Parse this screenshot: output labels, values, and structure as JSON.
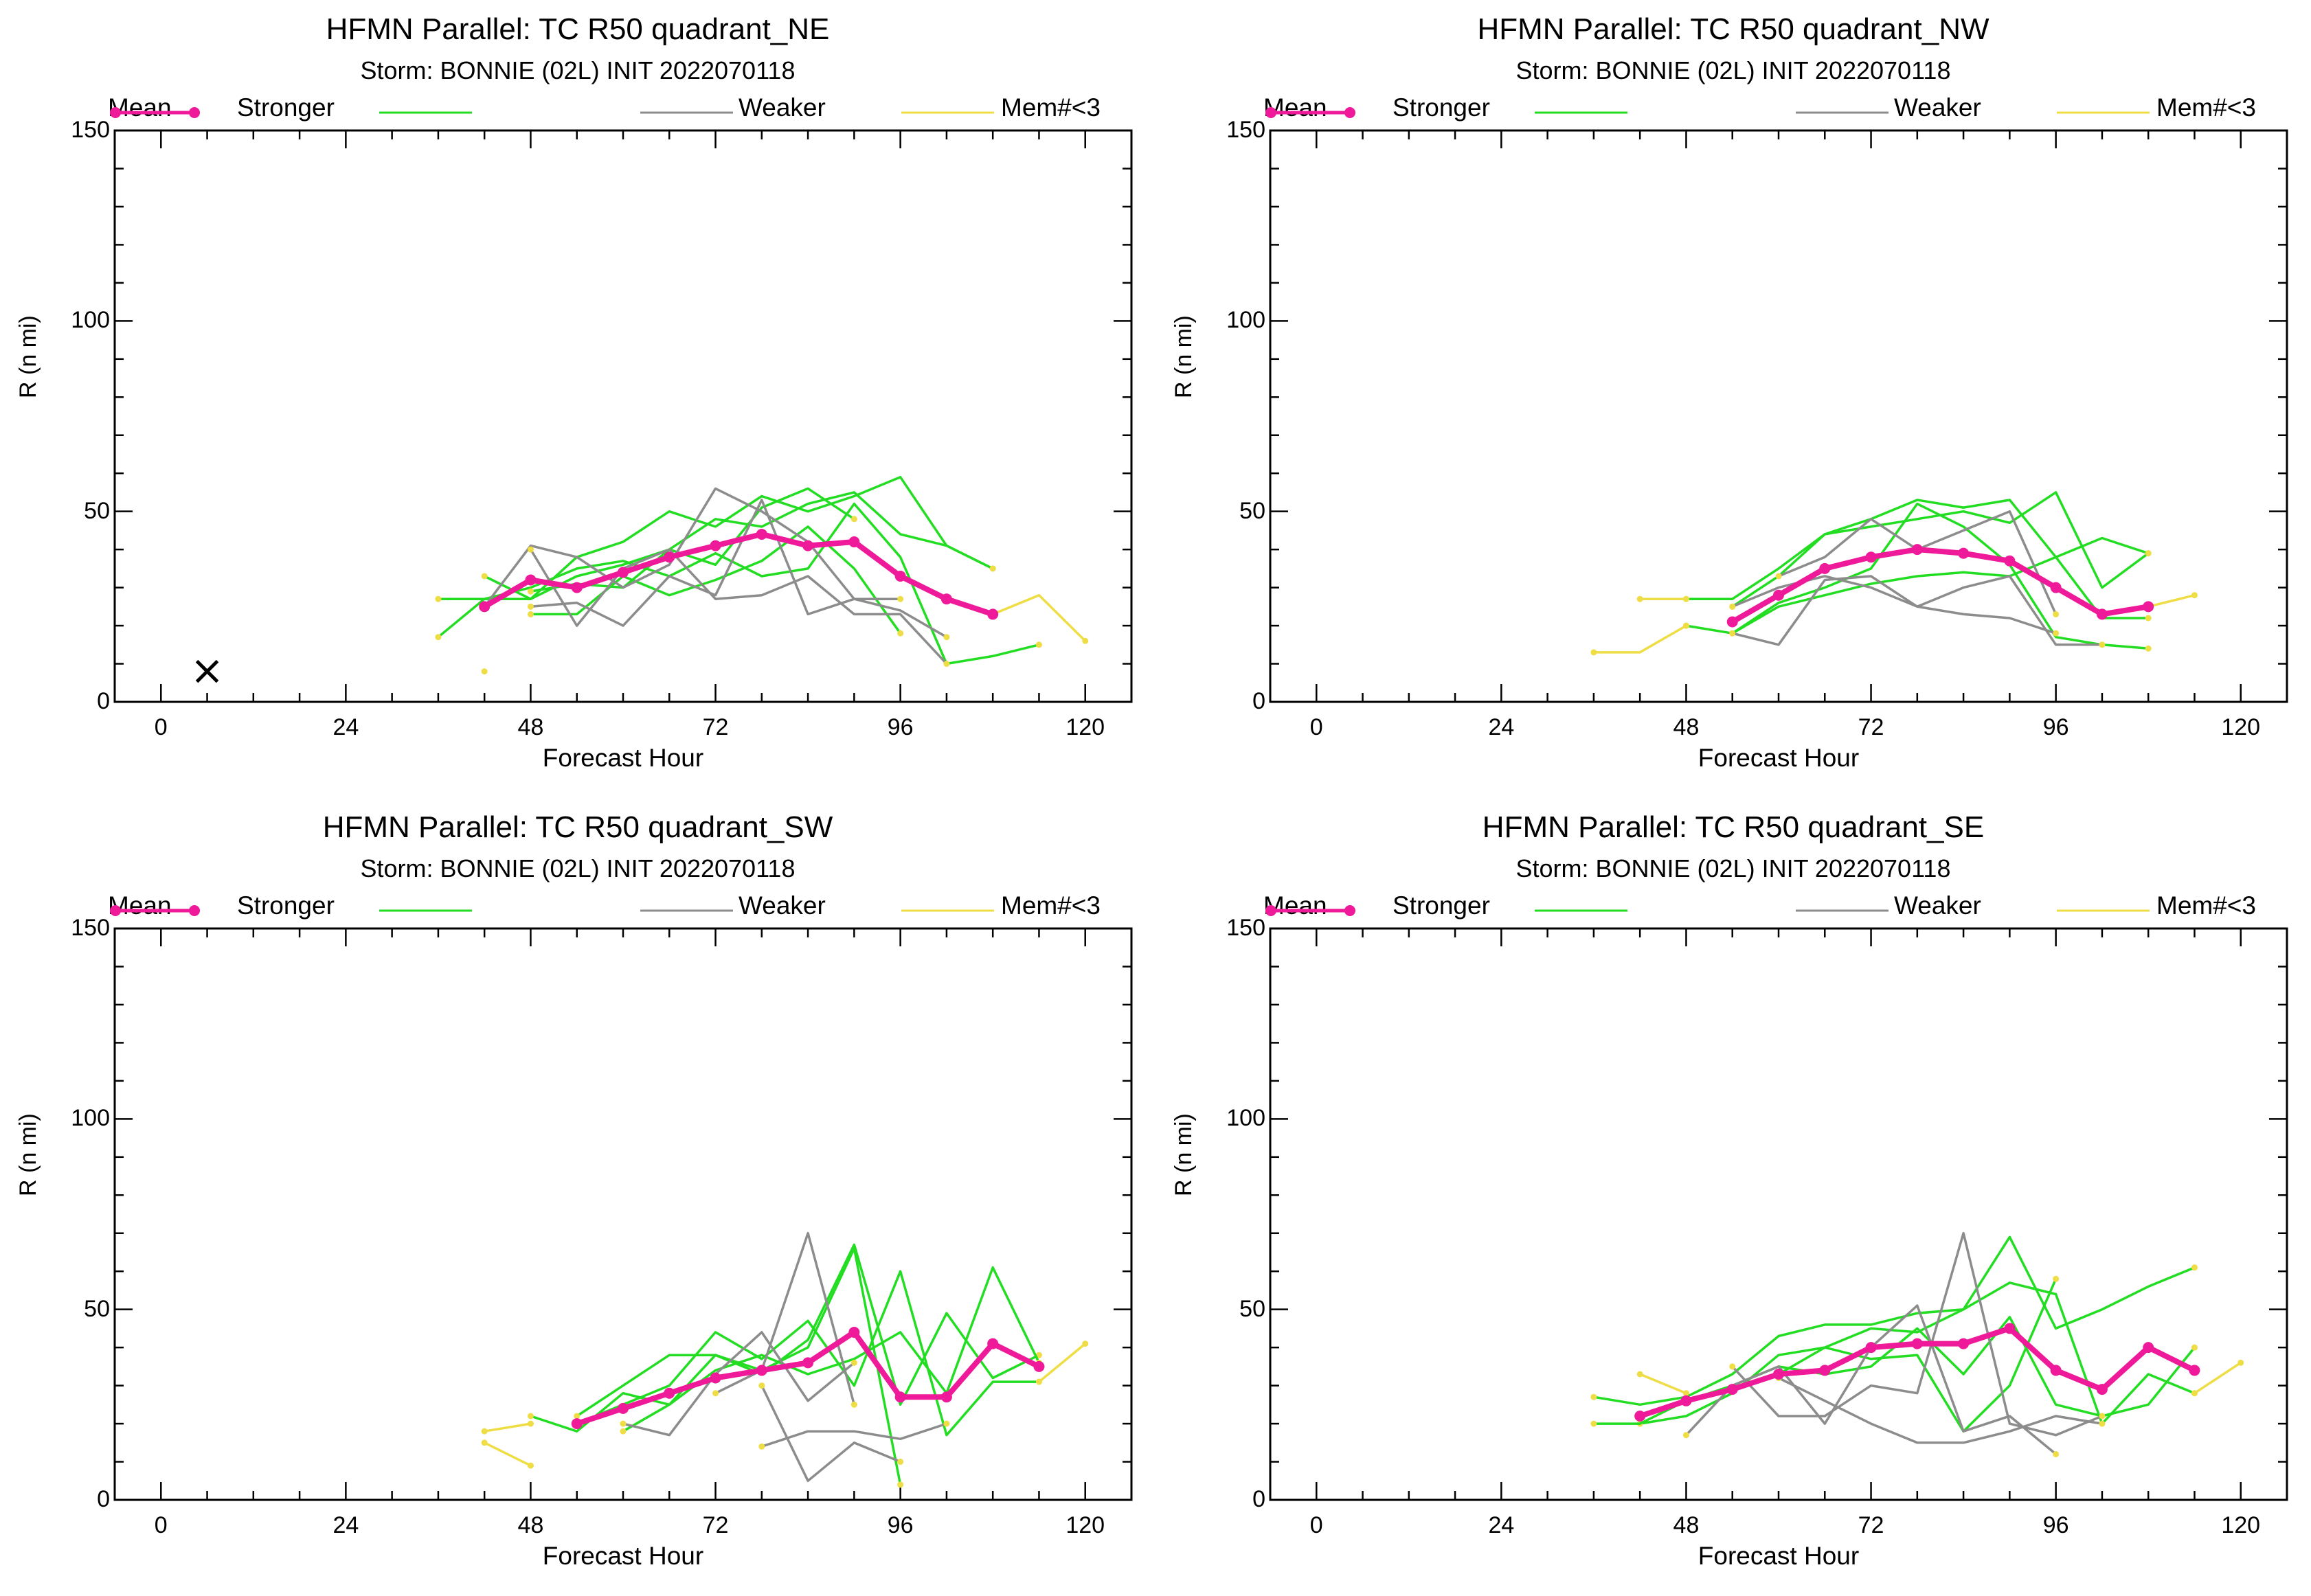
{
  "figure": {
    "legend": {
      "mean": "Mean",
      "stronger": "Stronger",
      "weaker": "Weaker",
      "mem": "Mem#<3"
    },
    "xlabel": "Forecast Hour",
    "ylabel": "R (n mi)",
    "x_ticks": [
      "0",
      "24",
      "48",
      "72",
      "96",
      "120"
    ],
    "y_ticks": [
      "0",
      "50",
      "100",
      "150"
    ]
  },
  "colors": {
    "mean": "#ee1a9a",
    "stronger": "#22dd22",
    "weaker": "#8c8c8c",
    "mem": "#eedd44",
    "axis": "#000000"
  },
  "chart_data": [
    {
      "type": "line",
      "title": "HFMN Parallel: TC  R50 quadrant_NE",
      "subtitle": "Storm: BONNIE (02L) INIT 2022070118",
      "xlabel": "Forecast Hour",
      "ylabel": "R (n mi)",
      "xlim": [
        -6,
        126
      ],
      "ylim": [
        0,
        150
      ],
      "marker": {
        "x": 6,
        "y": 8,
        "symbol": "x"
      },
      "series": [
        {
          "name": "Mean",
          "x": [
            42,
            48,
            54,
            60,
            66,
            72,
            78,
            84,
            90,
            96,
            102,
            108
          ],
          "y": [
            25,
            32,
            30,
            34,
            38,
            41,
            44,
            41,
            42,
            33,
            27,
            23
          ]
        },
        {
          "name": "Stronger",
          "x": [
            36,
            42,
            48,
            54,
            60,
            66,
            72,
            78,
            84,
            90,
            96,
            102,
            108
          ],
          "y": [
            27,
            27,
            27,
            38,
            42,
            50,
            46,
            54,
            50,
            54,
            59,
            41,
            35
          ]
        },
        {
          "name": "Stronger",
          "x": [
            42,
            48,
            54,
            60,
            66,
            72,
            78,
            84,
            90,
            96,
            102,
            108
          ],
          "y": [
            33,
            27,
            33,
            36,
            40,
            48,
            46,
            52,
            55,
            44,
            41,
            35
          ]
        },
        {
          "name": "Stronger",
          "x": [
            36,
            42,
            48,
            54,
            60,
            66,
            72,
            78,
            84,
            90,
            96,
            102,
            108,
            114
          ],
          "y": [
            17,
            27,
            30,
            35,
            37,
            33,
            39,
            33,
            35,
            52,
            38,
            10,
            12,
            15
          ]
        },
        {
          "name": "Stronger",
          "x": [
            48,
            54,
            60,
            66,
            72,
            78,
            84,
            90,
            96
          ],
          "y": [
            23,
            23,
            33,
            28,
            32,
            37,
            46,
            35,
            18
          ]
        },
        {
          "name": "Stronger",
          "x": [
            48,
            54,
            60,
            66,
            72,
            78,
            84,
            90
          ],
          "y": [
            29,
            31,
            30,
            40,
            36,
            51,
            56,
            48
          ]
        },
        {
          "name": "Weaker",
          "x": [
            42,
            48,
            54,
            60,
            66,
            72,
            78,
            84,
            90,
            96,
            102
          ],
          "y": [
            25,
            41,
            38,
            30,
            36,
            56,
            50,
            42,
            27,
            24,
            17
          ]
        },
        {
          "name": "Weaker",
          "x": [
            48,
            54,
            60,
            66,
            72,
            78,
            84,
            90,
            96,
            102
          ],
          "y": [
            40,
            20,
            35,
            40,
            27,
            28,
            33,
            23,
            23,
            10
          ]
        },
        {
          "name": "Weaker",
          "x": [
            48,
            54,
            60,
            66,
            72,
            78,
            84,
            90,
            96
          ],
          "y": [
            25,
            26,
            20,
            33,
            28,
            53,
            23,
            27,
            27
          ]
        },
        {
          "name": "Mem#<3",
          "x": [
            42
          ],
          "y": [
            8
          ]
        },
        {
          "name": "Mem#<3",
          "x": [
            108,
            114,
            120
          ],
          "y": [
            23,
            28,
            16
          ]
        }
      ]
    },
    {
      "type": "line",
      "title": "HFMN Parallel: TC  R50 quadrant_NW",
      "subtitle": "Storm: BONNIE (02L) INIT 2022070118",
      "xlabel": "Forecast Hour",
      "ylabel": "R (n mi)",
      "xlim": [
        -6,
        126
      ],
      "ylim": [
        0,
        150
      ],
      "series": [
        {
          "name": "Mean",
          "x": [
            54,
            60,
            66,
            72,
            78,
            84,
            90,
            96,
            102,
            108
          ],
          "y": [
            21,
            28,
            35,
            38,
            40,
            39,
            37,
            30,
            23,
            25
          ]
        },
        {
          "name": "Stronger",
          "x": [
            48,
            54,
            60,
            66,
            72,
            78,
            84,
            90,
            96,
            102,
            108
          ],
          "y": [
            27,
            27,
            35,
            44,
            48,
            53,
            51,
            53,
            38,
            22,
            22
          ]
        },
        {
          "name": "Stronger",
          "x": [
            54,
            60,
            66,
            72,
            78,
            84,
            90,
            96,
            102,
            108
          ],
          "y": [
            25,
            33,
            44,
            46,
            48,
            50,
            47,
            55,
            30,
            39
          ]
        },
        {
          "name": "Stronger",
          "x": [
            48,
            54,
            60,
            66,
            72,
            78,
            84,
            90,
            96,
            102,
            108
          ],
          "y": [
            20,
            18,
            25,
            28,
            31,
            33,
            34,
            33,
            38,
            43,
            39
          ]
        },
        {
          "name": "Stronger",
          "x": [
            54,
            60,
            66,
            72,
            78,
            84,
            90,
            96,
            102,
            108
          ],
          "y": [
            18,
            26,
            30,
            35,
            52,
            46,
            36,
            17,
            15,
            14
          ]
        },
        {
          "name": "Weaker",
          "x": [
            54,
            60,
            66,
            72,
            78,
            84,
            90,
            96,
            102
          ],
          "y": [
            18,
            15,
            32,
            33,
            25,
            30,
            33,
            15,
            15
          ]
        },
        {
          "name": "Weaker",
          "x": [
            60,
            66,
            72,
            78,
            84,
            90,
            96
          ],
          "y": [
            33,
            38,
            48,
            40,
            45,
            50,
            23
          ]
        },
        {
          "name": "Weaker",
          "x": [
            54,
            60,
            66,
            72,
            78,
            84,
            90,
            96
          ],
          "y": [
            25,
            30,
            33,
            30,
            25,
            23,
            22,
            18
          ]
        },
        {
          "name": "Mem#<3",
          "x": [
            36,
            42,
            48
          ],
          "y": [
            13,
            13,
            20
          ]
        },
        {
          "name": "Mem#<3",
          "x": [
            42,
            48
          ],
          "y": [
            27,
            27
          ]
        },
        {
          "name": "Mem#<3",
          "x": [
            108,
            114
          ],
          "y": [
            25,
            28
          ]
        }
      ]
    },
    {
      "type": "line",
      "title": "HFMN Parallel: TC  R50 quadrant_SW",
      "subtitle": "Storm: BONNIE (02L) INIT 2022070118",
      "xlabel": "Forecast Hour",
      "ylabel": "R (n mi)",
      "xlim": [
        -6,
        126
      ],
      "ylim": [
        0,
        150
      ],
      "series": [
        {
          "name": "Mean",
          "x": [
            54,
            60,
            66,
            72,
            78,
            84,
            90,
            96,
            102,
            108,
            114
          ],
          "y": [
            20,
            24,
            28,
            32,
            34,
            36,
            44,
            27,
            27,
            41,
            35
          ]
        },
        {
          "name": "Stronger",
          "x": [
            54,
            60,
            66,
            72,
            78,
            84,
            90,
            96,
            102,
            108,
            114
          ],
          "y": [
            22,
            30,
            38,
            38,
            33,
            42,
            67,
            25,
            49,
            32,
            38
          ]
        },
        {
          "name": "Stronger",
          "x": [
            54,
            60,
            66,
            72,
            78,
            84,
            90,
            96,
            102,
            108,
            114
          ],
          "y": [
            20,
            25,
            30,
            44,
            37,
            47,
            30,
            60,
            17,
            31,
            31
          ]
        },
        {
          "name": "Stronger",
          "x": [
            48,
            54,
            60,
            66,
            72,
            78,
            84,
            90,
            96
          ],
          "y": [
            22,
            18,
            28,
            25,
            38,
            34,
            40,
            66,
            4
          ]
        },
        {
          "name": "Stronger",
          "x": [
            60,
            66,
            72,
            78,
            84,
            90,
            96,
            102,
            108,
            114
          ],
          "y": [
            18,
            25,
            34,
            38,
            33,
            37,
            44,
            28,
            61,
            36
          ]
        },
        {
          "name": "Weaker",
          "x": [
            60,
            66,
            72,
            78,
            84,
            90
          ],
          "y": [
            20,
            17,
            33,
            44,
            26,
            36
          ]
        },
        {
          "name": "Weaker",
          "x": [
            72,
            78,
            84,
            90
          ],
          "y": [
            28,
            34,
            70,
            25
          ]
        },
        {
          "name": "Weaker",
          "x": [
            78,
            84,
            90,
            96,
            102
          ],
          "y": [
            14,
            18,
            18,
            16,
            20
          ]
        },
        {
          "name": "Weaker",
          "x": [
            78,
            84,
            90,
            96
          ],
          "y": [
            30,
            5,
            15,
            10
          ]
        },
        {
          "name": "Mem#<3",
          "x": [
            42,
            48
          ],
          "y": [
            18,
            20
          ]
        },
        {
          "name": "Mem#<3",
          "x": [
            42,
            48
          ],
          "y": [
            15,
            9
          ]
        },
        {
          "name": "Mem#<3",
          "x": [
            114,
            120
          ],
          "y": [
            31,
            41
          ]
        }
      ]
    },
    {
      "type": "line",
      "title": "HFMN Parallel: TC  R50 quadrant_SE",
      "subtitle": "Storm: BONNIE (02L) INIT 2022070118",
      "xlabel": "Forecast Hour",
      "ylabel": "R (n mi)",
      "xlim": [
        -6,
        126
      ],
      "ylim": [
        0,
        150
      ],
      "series": [
        {
          "name": "Mean",
          "x": [
            42,
            48,
            54,
            60,
            66,
            72,
            78,
            84,
            90,
            96,
            102,
            108,
            114
          ],
          "y": [
            22,
            26,
            29,
            33,
            34,
            40,
            41,
            41,
            45,
            34,
            29,
            40,
            34
          ]
        },
        {
          "name": "Stronger",
          "x": [
            36,
            42,
            48,
            54,
            60,
            66,
            72,
            78,
            84,
            90,
            96,
            102,
            108,
            114
          ],
          "y": [
            27,
            25,
            27,
            33,
            43,
            46,
            46,
            49,
            50,
            57,
            54,
            20,
            33,
            28
          ]
        },
        {
          "name": "Stronger",
          "x": [
            42,
            48,
            54,
            60,
            66,
            72,
            78,
            84,
            90,
            96,
            102,
            108,
            114
          ],
          "y": [
            20,
            22,
            28,
            38,
            40,
            45,
            44,
            50,
            69,
            45,
            50,
            56,
            61
          ]
        },
        {
          "name": "Stronger",
          "x": [
            36,
            42,
            48,
            54,
            60,
            66,
            72,
            78,
            84,
            90,
            96,
            102,
            108,
            114
          ],
          "y": [
            20,
            20,
            26,
            30,
            35,
            33,
            35,
            45,
            33,
            48,
            25,
            22,
            25,
            40
          ]
        },
        {
          "name": "Stronger",
          "x": [
            54,
            60,
            66,
            72,
            78,
            84,
            90,
            96
          ],
          "y": [
            29,
            33,
            40,
            37,
            38,
            18,
            30,
            58
          ]
        },
        {
          "name": "Weaker",
          "x": [
            48,
            54,
            60,
            66,
            72,
            78,
            84,
            90,
            96
          ],
          "y": [
            17,
            30,
            35,
            20,
            40,
            51,
            18,
            22,
            12
          ]
        },
        {
          "name": "Weaker",
          "x": [
            54,
            60,
            66,
            72,
            78,
            84,
            90,
            96,
            102
          ],
          "y": [
            35,
            22,
            22,
            30,
            28,
            70,
            20,
            17,
            22
          ]
        },
        {
          "name": "Weaker",
          "x": [
            60,
            66,
            72,
            78,
            84,
            90,
            96,
            102
          ],
          "y": [
            32,
            26,
            20,
            15,
            15,
            18,
            22,
            20
          ]
        },
        {
          "name": "Mem#<3",
          "x": [
            42,
            48
          ],
          "y": [
            33,
            28
          ]
        },
        {
          "name": "Mem#<3",
          "x": [
            114,
            120
          ],
          "y": [
            28,
            36
          ]
        }
      ]
    }
  ]
}
